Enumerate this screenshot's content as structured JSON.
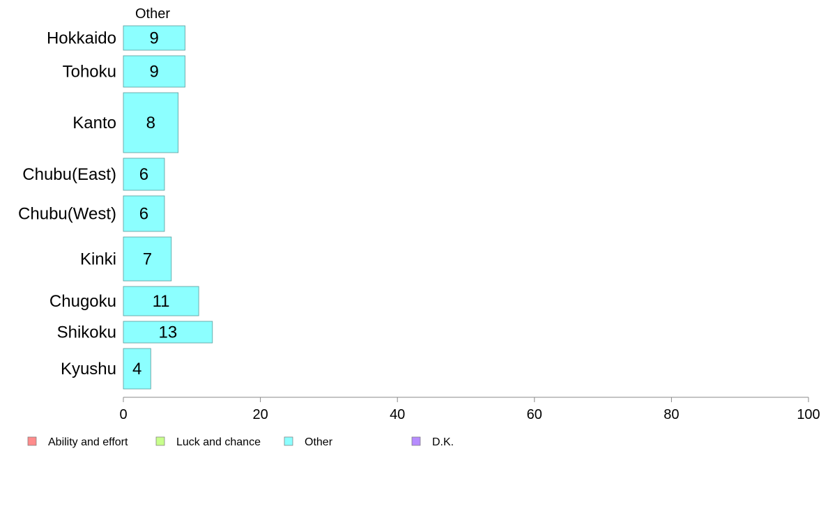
{
  "chart_data": {
    "type": "bar",
    "orientation": "horizontal",
    "panel_title": "Other",
    "categories": [
      "Hokkaido",
      "Tohoku",
      "Kanto",
      "Chubu(East)",
      "Chubu(West)",
      "Kinki",
      "Chugoku",
      "Shikoku",
      "Kyushu"
    ],
    "series": [
      {
        "name": "Other",
        "values": [
          9,
          9,
          8,
          6,
          6,
          7,
          11,
          13,
          4
        ],
        "color": "#8cffff"
      }
    ],
    "xlim": [
      0,
      100
    ],
    "xticks": [
      0,
      20,
      40,
      60,
      80,
      100
    ],
    "grid": false,
    "legend": {
      "placement": "bottom-left",
      "items": [
        {
          "name": "Ability and effort",
          "color": "#ff8c8c"
        },
        {
          "name": "Luck and chance",
          "color": "#c8ff8c"
        },
        {
          "name": "Other",
          "color": "#8cffff"
        },
        {
          "name": "D.K.",
          "color": "#b68cff"
        }
      ]
    }
  }
}
